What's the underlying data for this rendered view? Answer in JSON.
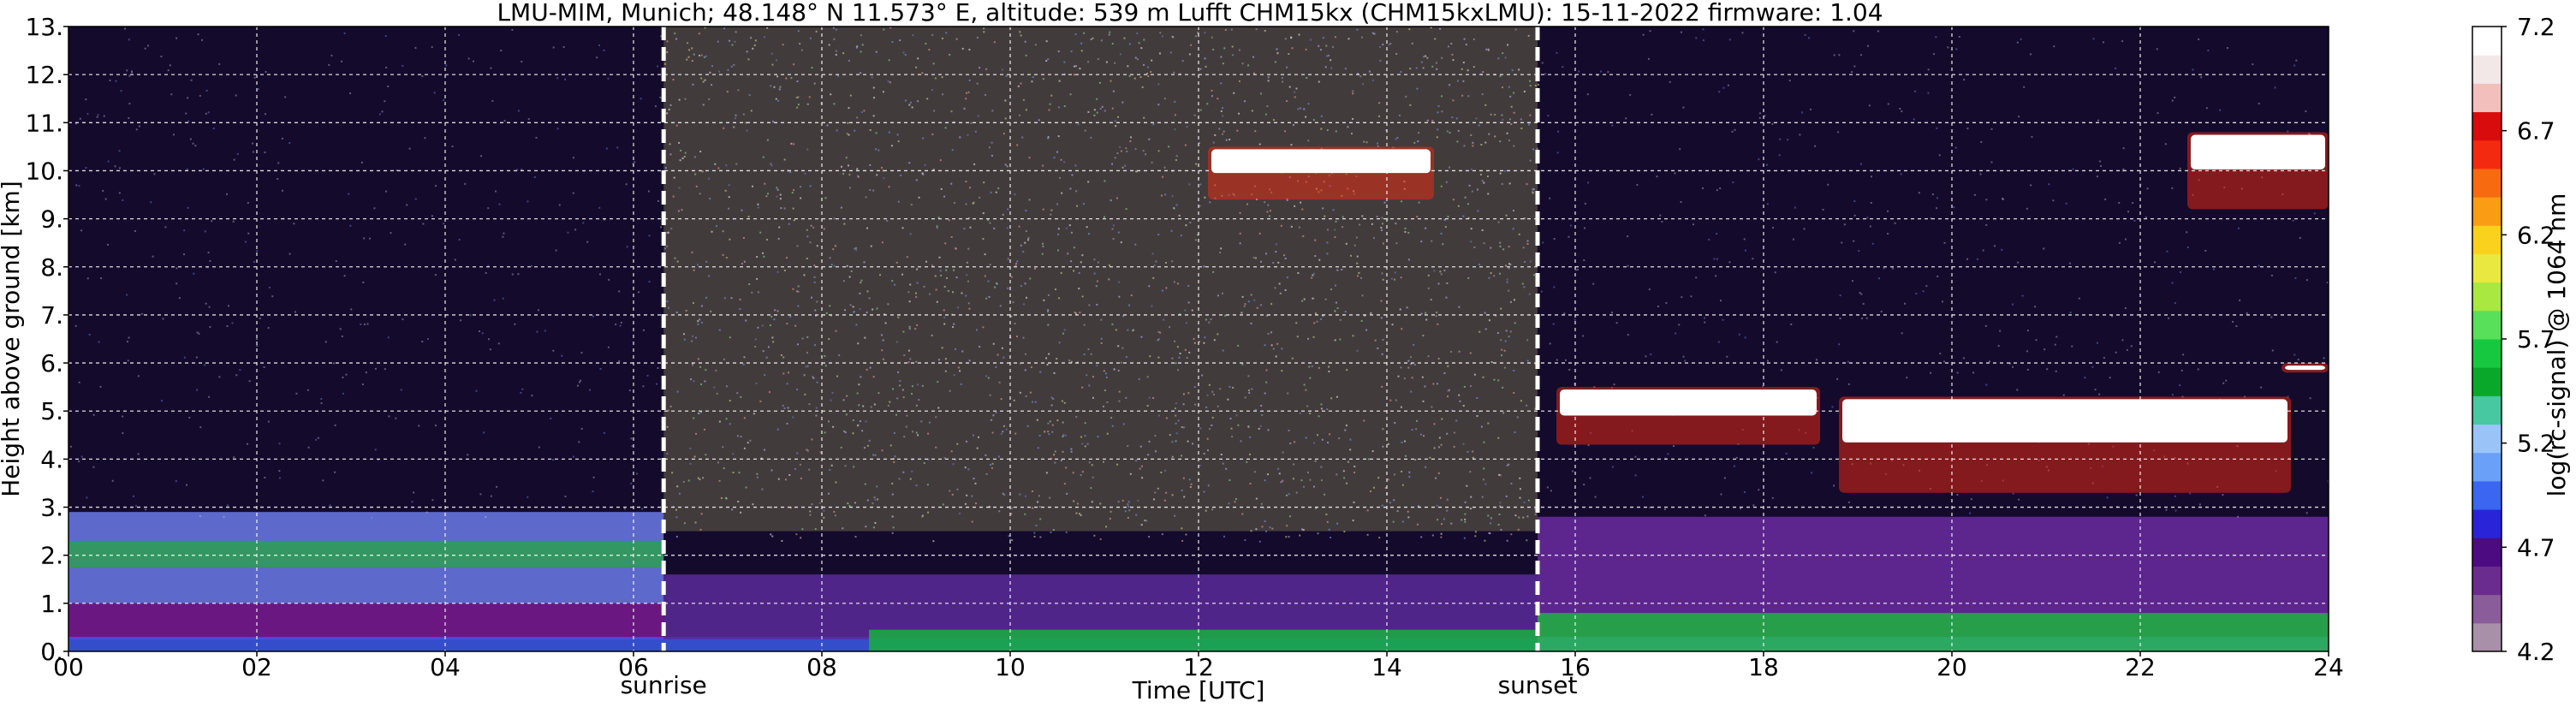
{
  "chart_data": {
    "type": "heatmap",
    "title": "LMU-MIM, Munich; 48.148° N 11.573° E, altitude: 539 m    Lufft CHM15kx (CHM15kxLMU): 15-11-2022    firmware: 1.04",
    "xlabel": "Time [UTC]",
    "ylabel": "Height above ground [km]",
    "xlim": [
      0,
      24
    ],
    "ylim": [
      0,
      13
    ],
    "x_ticks": [
      0,
      2,
      4,
      6,
      8,
      10,
      12,
      14,
      16,
      18,
      20,
      22,
      24
    ],
    "x_tick_labels": [
      "00",
      "02",
      "04",
      "06",
      "08",
      "10",
      "12",
      "14",
      "16",
      "18",
      "20",
      "22",
      "24"
    ],
    "y_ticks": [
      0,
      1,
      2,
      3,
      4,
      5,
      6,
      7,
      8,
      9,
      10,
      11,
      12,
      13
    ],
    "y_tick_labels": [
      "0.",
      "1.",
      "2.",
      "3.",
      "4.",
      "5.",
      "6.",
      "7.",
      "8.",
      "9.",
      "10.",
      "11.",
      "12.",
      "13."
    ],
    "grid": true,
    "markers": [
      {
        "label": "sunrise",
        "x": 6.32
      },
      {
        "label": "sunset",
        "x": 15.6
      }
    ],
    "colorbar": {
      "label": "log(rc-signal) @ 1064 nm",
      "range": [
        4.2,
        7.2
      ],
      "ticks": [
        4.2,
        4.7,
        5.2,
        5.7,
        6.2,
        6.7,
        7.2
      ],
      "tick_labels": [
        "4.2",
        "4.7",
        "5.2",
        "5.7",
        "6.2",
        "6.7",
        "7.2"
      ],
      "colors": [
        "#a890a8",
        "#8a5c9a",
        "#6a2c8e",
        "#4b0c82",
        "#2a24d8",
        "#3a66f0",
        "#6aa0f8",
        "#9ac4f8",
        "#46c8a0",
        "#0aa82a",
        "#16c840",
        "#58e05a",
        "#a8e840",
        "#e8e840",
        "#fad21e",
        "#fa9c14",
        "#f86a10",
        "#f42a10",
        "#d80c0c",
        "#f2c0bc",
        "#f2e8e8",
        "#ffffff"
      ]
    },
    "layers": [
      {
        "name": "background",
        "x": [
          0,
          24
        ],
        "y": [
          0,
          13
        ],
        "color": "#140a2c"
      },
      {
        "name": "noise-day",
        "x": [
          6.32,
          15.6
        ],
        "y": [
          2.5,
          13
        ],
        "color": "#4a4440"
      },
      {
        "name": "night-aerosol",
        "x": [
          0,
          6.32
        ],
        "y": [
          1.0,
          2.9
        ],
        "color": "#6a7ae8"
      },
      {
        "name": "night-green-layer",
        "x": [
          0,
          6.32
        ],
        "y": [
          1.75,
          2.3
        ],
        "color": "#2aa050"
      },
      {
        "name": "night-purple",
        "x": [
          0,
          6.32
        ],
        "y": [
          0.25,
          1.0
        ],
        "color": "#7a1a90"
      },
      {
        "name": "surface-blue",
        "x": [
          0,
          24
        ],
        "y": [
          0,
          0.3
        ],
        "color": "#3a5ae8"
      },
      {
        "name": "day-low",
        "x": [
          6.32,
          15.6
        ],
        "y": [
          0.25,
          1.6
        ],
        "color": "#5a2a9a"
      },
      {
        "name": "day-green",
        "x": [
          8.5,
          15.6
        ],
        "y": [
          0,
          0.45
        ],
        "color": "#18b040"
      },
      {
        "name": "evening-purple",
        "x": [
          15.6,
          24
        ],
        "y": [
          0.8,
          2.8
        ],
        "color": "#6a2aa0"
      },
      {
        "name": "evening-green",
        "x": [
          15.6,
          24
        ],
        "y": [
          0,
          0.8
        ],
        "color": "#2ab850"
      }
    ],
    "clouds": [
      {
        "x": [
          12.1,
          14.5
        ],
        "y": [
          9.4,
          10.5
        ],
        "peak": "high"
      },
      {
        "x": [
          15.8,
          18.6
        ],
        "y": [
          4.3,
          5.5
        ],
        "peak": "high"
      },
      {
        "x": [
          18.8,
          23.6
        ],
        "y": [
          3.3,
          5.3
        ],
        "peak": "high"
      },
      {
        "x": [
          22.5,
          24
        ],
        "y": [
          9.2,
          10.8
        ],
        "peak": "high"
      },
      {
        "x": [
          23.5,
          24
        ],
        "y": [
          5.8,
          6.0
        ],
        "peak": "high"
      }
    ]
  }
}
